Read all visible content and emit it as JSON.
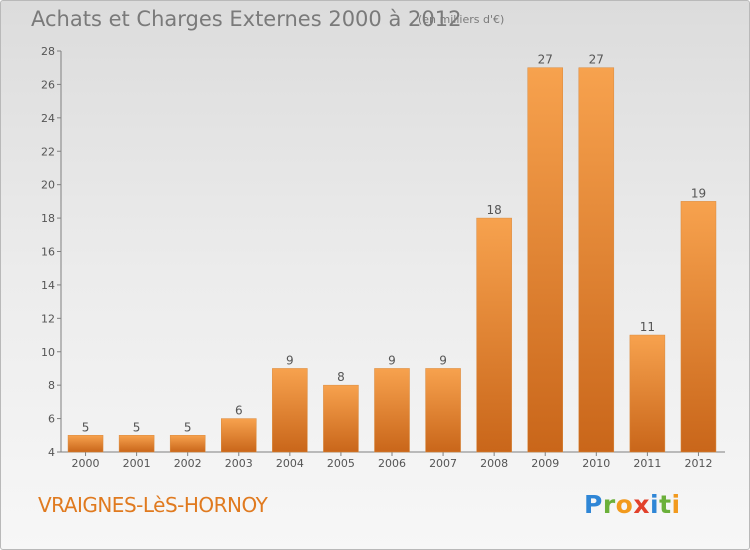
{
  "header": {
    "title": "Achats et Charges Externes 2000 à 2012",
    "unit": "(en milliers d'€)"
  },
  "footer": {
    "commune": "VRAIGNES-LèS-HORNOY",
    "logo_letters": [
      "P",
      "r",
      "o",
      "x",
      "i",
      "t",
      "i"
    ]
  },
  "colors": {
    "bar_top": "#f7a24e",
    "bar_bottom": "#c9661a",
    "commune_text": "#e07a1f",
    "title_text": "#7a7a7a"
  },
  "chart_data": {
    "type": "bar",
    "title": "Achats et Charges Externes 2000 à 2012",
    "categories": [
      "2000",
      "2001",
      "2002",
      "2003",
      "2004",
      "2005",
      "2006",
      "2007",
      "2008",
      "2009",
      "2010",
      "2011",
      "2012"
    ],
    "values": [
      5,
      5,
      5,
      6,
      9,
      8,
      9,
      9,
      18,
      27,
      27,
      11,
      19
    ],
    "ylim": [
      4,
      28
    ],
    "yticks": [
      4,
      6,
      8,
      10,
      12,
      14,
      16,
      18,
      20,
      22,
      24,
      26,
      28
    ],
    "grid": false,
    "legend": "none"
  }
}
